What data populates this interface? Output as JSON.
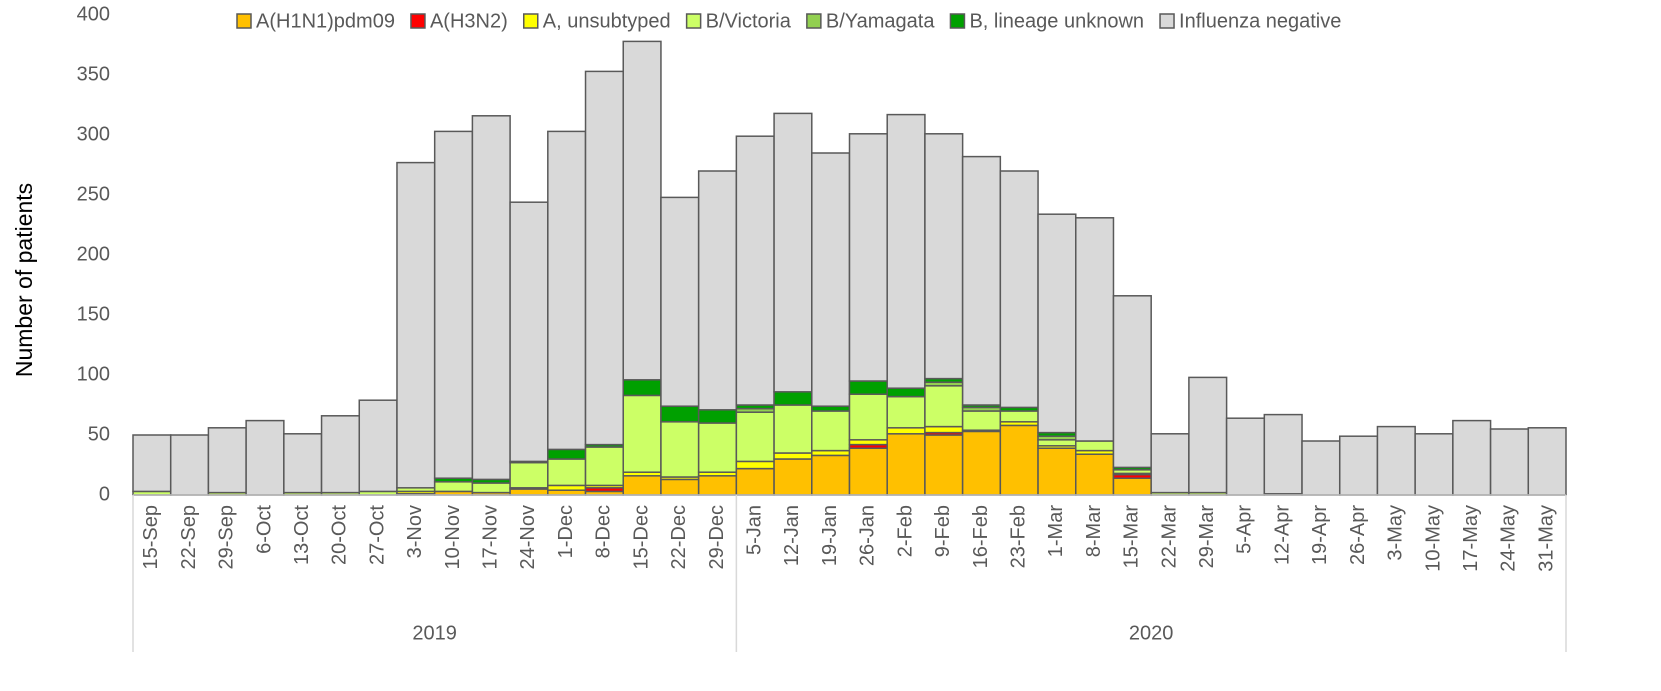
{
  "chart_data": {
    "type": "stacked_bar",
    "y_label": "Number of patients",
    "category_groups": [
      {
        "name": "2019",
        "categories": [
          "15-Sep",
          "22-Sep",
          "29-Sep",
          "6-Oct",
          "13-Oct",
          "20-Oct",
          "27-Oct",
          "3-Nov",
          "10-Nov",
          "17-Nov",
          "24-Nov",
          "1-Dec",
          "8-Dec",
          "15-Dec",
          "22-Dec",
          "29-Dec"
        ]
      },
      {
        "name": "2020",
        "categories": [
          "5-Jan",
          "12-Jan",
          "19-Jan",
          "26-Jan",
          "2-Feb",
          "9-Feb",
          "16-Feb",
          "23-Feb",
          "1-Mar",
          "8-Mar",
          "15-Mar",
          "22-Mar",
          "29-Mar",
          "5-Apr",
          "12-Apr",
          "19-Apr",
          "26-Apr",
          "3-May",
          "10-May",
          "17-May",
          "24-May",
          "31-May"
        ]
      }
    ],
    "series": [
      {
        "name": "A(H1N1)pdm09",
        "color": "#ffc000",
        "values": [
          0,
          0,
          0,
          0,
          0,
          0,
          0,
          1,
          3,
          2,
          5,
          4,
          3,
          16,
          13,
          16,
          22,
          30,
          33,
          39,
          51,
          50,
          53,
          58,
          39,
          34,
          14,
          0,
          0,
          0,
          0,
          0,
          0,
          0,
          0,
          0,
          0,
          0
        ]
      },
      {
        "name": "A(H3N2)",
        "color": "#ff0000",
        "values": [
          0,
          0,
          0,
          0,
          0,
          0,
          0,
          0,
          0,
          0,
          0,
          0,
          3,
          0,
          0,
          0,
          0,
          0,
          0,
          3,
          0,
          2,
          0,
          0,
          0,
          0,
          3,
          0,
          0,
          0,
          0,
          0,
          0,
          0,
          0,
          0,
          0,
          0
        ]
      },
      {
        "name": "A, unsubtyped",
        "color": "#ffff00",
        "values": [
          0,
          0,
          0,
          0,
          0,
          0,
          0,
          2,
          0,
          0,
          1,
          4,
          2,
          3,
          2,
          3,
          6,
          5,
          4,
          4,
          5,
          5,
          1,
          3,
          2,
          3,
          1,
          0,
          0,
          0,
          0,
          0,
          0,
          0,
          0,
          0,
          0,
          0
        ]
      },
      {
        "name": "B/Victoria",
        "color": "#ccff66",
        "values": [
          3,
          0,
          2,
          0,
          2,
          2,
          3,
          3,
          8,
          8,
          21,
          22,
          32,
          64,
          46,
          41,
          41,
          40,
          33,
          38,
          26,
          34,
          16,
          9,
          5,
          8,
          3,
          2,
          2,
          0,
          1,
          0,
          0,
          0,
          0,
          0,
          0,
          0
        ]
      },
      {
        "name": "B/Yamagata",
        "color": "#92d050",
        "values": [
          0,
          0,
          0,
          0,
          0,
          0,
          0,
          0,
          0,
          0,
          0,
          0,
          0,
          0,
          0,
          0,
          3,
          0,
          0,
          0,
          0,
          3,
          3,
          0,
          3,
          0,
          0,
          0,
          0,
          0,
          0,
          0,
          0,
          0,
          0,
          0,
          0,
          0
        ]
      },
      {
        "name": "B, lineage unknown",
        "color": "#00a000",
        "values": [
          0,
          0,
          0,
          0,
          0,
          0,
          0,
          0,
          3,
          3,
          1,
          8,
          2,
          13,
          13,
          11,
          3,
          11,
          4,
          11,
          7,
          3,
          2,
          3,
          3,
          0,
          2,
          0,
          0,
          0,
          0,
          0,
          0,
          0,
          0,
          0,
          0,
          0
        ]
      },
      {
        "name": "Influenza negative",
        "color": "#d9d9d9",
        "values": [
          47,
          50,
          54,
          62,
          49,
          64,
          76,
          271,
          289,
          303,
          216,
          265,
          311,
          282,
          174,
          199,
          224,
          232,
          211,
          206,
          228,
          204,
          207,
          197,
          182,
          186,
          143,
          49,
          96,
          64,
          66,
          45,
          49,
          57,
          51,
          62,
          55,
          56
        ]
      }
    ],
    "ylim": [
      0,
      400
    ],
    "yticks": [
      0,
      50,
      100,
      150,
      200,
      250,
      300,
      350,
      400
    ],
    "legend": "top"
  }
}
